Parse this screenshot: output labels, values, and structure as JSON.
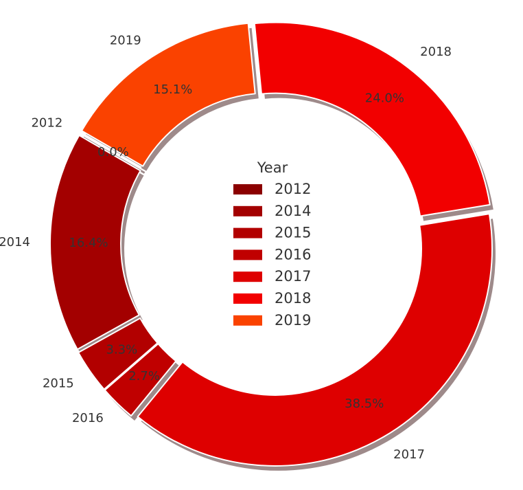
{
  "chart_data": {
    "type": "pie",
    "donut": true,
    "legend_title": "Year",
    "legend_placement": "center",
    "shadow": true,
    "slices": [
      {
        "label": "2012",
        "value": 0.0,
        "pct_label": "0.0%",
        "color": "#8B0000"
      },
      {
        "label": "2014",
        "value": 16.4,
        "pct_label": "16.4%",
        "color": "#A30000"
      },
      {
        "label": "2015",
        "value": 3.3,
        "pct_label": "3.3%",
        "color": "#B20000"
      },
      {
        "label": "2016",
        "value": 2.7,
        "pct_label": "2.7%",
        "color": "#C00000"
      },
      {
        "label": "2017",
        "value": 38.5,
        "pct_label": "38.5%",
        "color": "#DE0000"
      },
      {
        "label": "2018",
        "value": 24.0,
        "pct_label": "24.0%",
        "color": "#F20000"
      },
      {
        "label": "2019",
        "value": 15.1,
        "pct_label": "15.1%",
        "color": "#FA4200"
      }
    ]
  }
}
